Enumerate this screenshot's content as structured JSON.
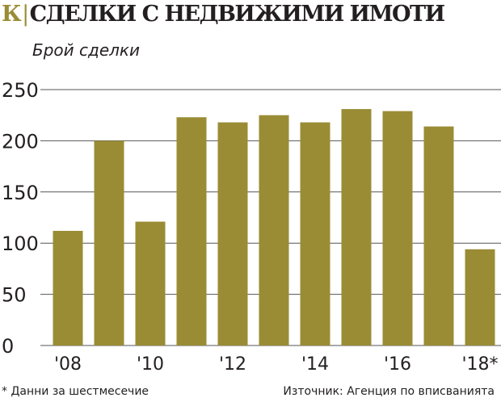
{
  "header": {
    "logo": "К",
    "title": "СДЕЛКИ С НЕДВИЖИМИ ИМОТИ"
  },
  "chart_data": {
    "type": "bar",
    "title": "СДЕЛКИ С НЕДВИЖИМИ ИМОТИ",
    "ylabel": "Брой сделки",
    "xlabel": "",
    "categories": [
      "'08",
      "'09",
      "'10",
      "'11",
      "'12",
      "'13",
      "'14",
      "'15",
      "'16",
      "'17",
      "'18*"
    ],
    "x_tick_labels": [
      "'08",
      "'10",
      "'12",
      "'14",
      "'16",
      "'18*"
    ],
    "values": [
      112,
      200,
      121,
      223,
      218,
      225,
      218,
      231,
      229,
      214,
      94
    ],
    "ylim": [
      0,
      250
    ],
    "yticks": [
      0,
      50,
      100,
      150,
      200,
      250
    ],
    "grid": true,
    "bar_color": "#9a8c35"
  },
  "footer": {
    "note": "* Данни за шестмесечие",
    "source": "Източник: Агенция по вписванията"
  }
}
